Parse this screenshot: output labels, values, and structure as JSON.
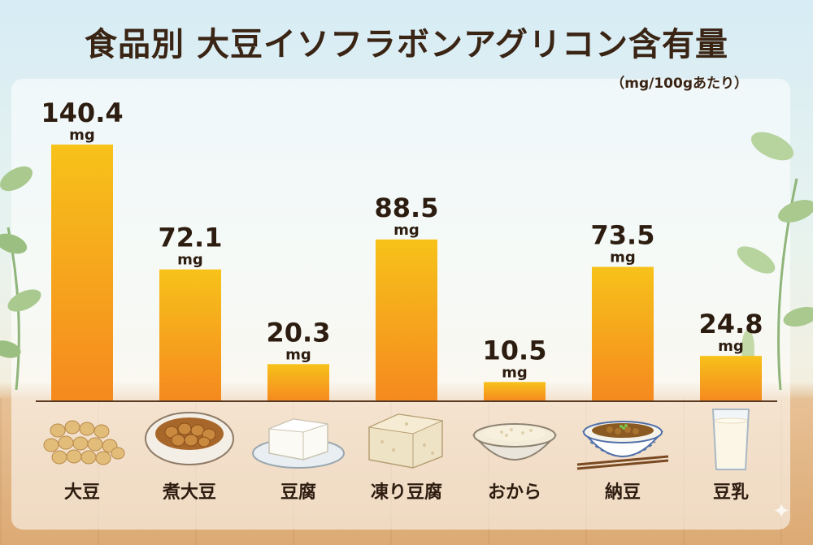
{
  "title": "食品別 大豆イソフラボンアグリコン含有量",
  "subtitle": "（mg/100gあたり）",
  "chart_data": {
    "type": "bar",
    "title": "食品別 大豆イソフラボンアグリコン含有量",
    "subtitle": "（mg/100gあたり）",
    "unit": "mg",
    "categories": [
      "大豆",
      "煮大豆",
      "豆腐",
      "凍り豆腐",
      "おから",
      "納豆",
      "豆乳"
    ],
    "values": [
      140.4,
      72.1,
      20.3,
      88.5,
      10.5,
      73.5,
      24.8
    ],
    "value_labels": [
      "140.4",
      "72.1",
      "20.3",
      "88.5",
      "10.5",
      "73.5",
      "24.8"
    ],
    "ylim": [
      0,
      140.4
    ],
    "grid": false,
    "legend": "none",
    "bar_color_top": "#f7c21a",
    "bar_color_bottom": "#f5891f",
    "label_color": "#2d1c10"
  },
  "food_icons": [
    "soybeans-icon",
    "simmered-soybeans-icon",
    "tofu-icon",
    "freeze-dried-tofu-icon",
    "okara-icon",
    "natto-icon",
    "soy-milk-icon"
  ]
}
